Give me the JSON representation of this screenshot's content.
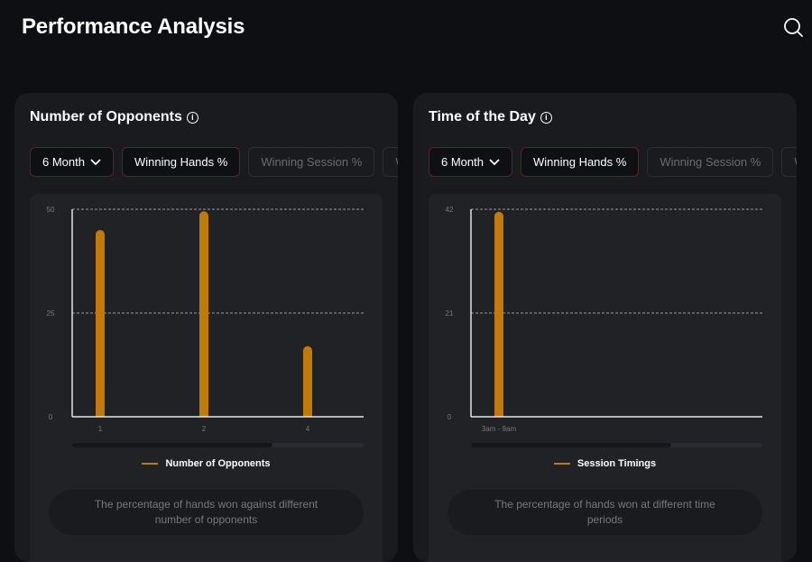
{
  "header": {
    "title": "Performance Analysis",
    "search_icon": "search-icon"
  },
  "cards": [
    {
      "title": "Number of Opponents",
      "period": "6 Month",
      "tabs": [
        "Winning Hands %",
        "Winning Session %",
        "W"
      ],
      "legend": "Number of Opponents",
      "description": "The percentage of hands won against different number of opponents",
      "chart_data": {
        "type": "bar",
        "categories": [
          "1",
          "2",
          "4"
        ],
        "values": [
          45,
          49.5,
          17
        ],
        "yticks": [
          "0",
          "25",
          "50"
        ],
        "ylim": [
          0,
          50
        ],
        "grid": true,
        "legend": "bottom",
        "color": "#c17a0a",
        "series": [
          {
            "name": "Number of Opponents",
            "values": [
              45,
              49.5,
              17
            ]
          }
        ]
      }
    },
    {
      "title": "Time of the Day",
      "period": "6 Month",
      "tabs": [
        "Winning Hands %",
        "Winning Session %",
        "W"
      ],
      "legend": "Session Timings",
      "description": "The percentage of hands won at different time periods",
      "chart_data": {
        "type": "bar",
        "categories": [
          "3am - 9am"
        ],
        "values": [
          41.5
        ],
        "yticks": [
          "0",
          "21",
          "42"
        ],
        "ylim": [
          0,
          42
        ],
        "grid": true,
        "legend": "bottom",
        "color": "#c17a0a",
        "series": [
          {
            "name": "Session Timings",
            "values": [
              41.5
            ]
          }
        ]
      }
    }
  ]
}
